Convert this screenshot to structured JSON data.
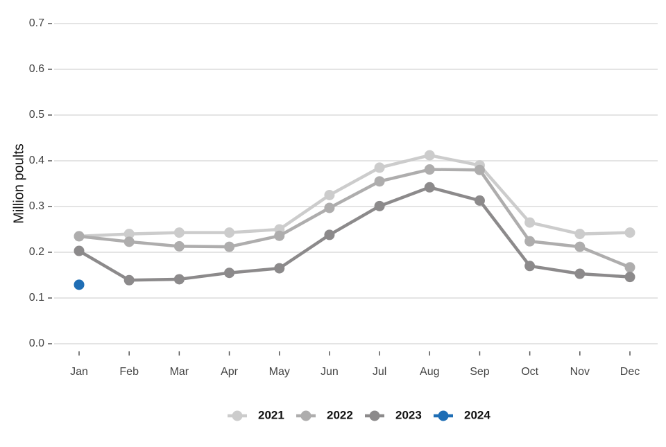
{
  "chart_data": {
    "type": "line",
    "title": "",
    "xlabel": "",
    "ylabel": "Million poults",
    "ylim": [
      0,
      0.7
    ],
    "yticks": [
      "0.0",
      "0.1",
      "0.2",
      "0.3",
      "0.4",
      "0.5",
      "0.6",
      "0.7"
    ],
    "ytick_values": [
      0,
      0.1,
      0.2,
      0.3,
      0.4,
      0.5,
      0.6,
      0.7
    ],
    "categories": [
      "Jan",
      "Feb",
      "Mar",
      "Apr",
      "May",
      "Jun",
      "Jul",
      "Aug",
      "Sep",
      "Oct",
      "Nov",
      "Dec"
    ],
    "grid": "horizontal",
    "legend_position": "bottom",
    "series": [
      {
        "name": "2021",
        "color": "#cccccc",
        "values": [
          0.235,
          0.24,
          0.243,
          0.243,
          0.25,
          0.325,
          0.385,
          0.412,
          0.39,
          0.265,
          0.24,
          0.243
        ]
      },
      {
        "name": "2022",
        "color": "#aeadad",
        "values": [
          0.235,
          0.223,
          0.213,
          0.212,
          0.236,
          0.297,
          0.355,
          0.381,
          0.38,
          0.224,
          0.212,
          0.167
        ]
      },
      {
        "name": "2023",
        "color": "#8c8a8b",
        "values": [
          0.203,
          0.139,
          0.141,
          0.155,
          0.165,
          0.238,
          0.301,
          0.342,
          0.313,
          0.17,
          0.153,
          0.146
        ]
      },
      {
        "name": "2024",
        "color": "#1f6eb5",
        "values": [
          0.129,
          null,
          null,
          null,
          null,
          null,
          null,
          null,
          null,
          null,
          null,
          null
        ]
      }
    ]
  }
}
